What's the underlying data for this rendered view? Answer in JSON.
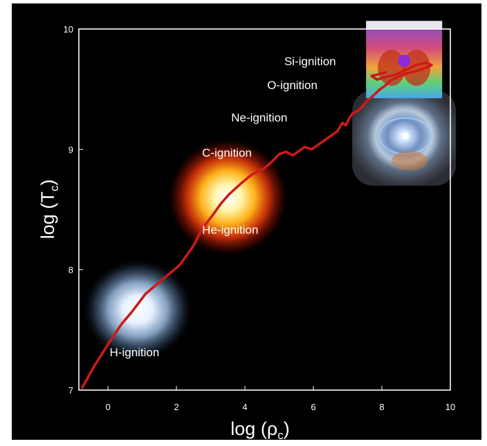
{
  "chart_data": {
    "type": "line",
    "xlabel": "log (ρ_c)",
    "ylabel": "log (T_c)",
    "xlabel_main": "log (ρ",
    "xlabel_sub": "c",
    "xlabel_close": ")",
    "ylabel_main": "log (T",
    "ylabel_sub": "c",
    "ylabel_close": ")",
    "xlim": [
      -0.85,
      10
    ],
    "ylim": [
      7,
      10
    ],
    "xticks": [
      0,
      2,
      4,
      6,
      8,
      10
    ],
    "yticks": [
      7,
      8,
      9,
      10
    ],
    "grid": false,
    "background": "#000000",
    "line_color": "#cc1a1a",
    "track": {
      "x": [
        -0.75,
        -0.4,
        0,
        0.4,
        0.7,
        1.1,
        1.6,
        2.1,
        2.5,
        2.75,
        3.05,
        3.3,
        3.55,
        3.9,
        4.2,
        4.55,
        4.8,
        5.0,
        5.2,
        5.4,
        5.55,
        5.75,
        5.95,
        6.15,
        6.35,
        6.55,
        6.7,
        6.85,
        6.95,
        7.05,
        7.15,
        7.3,
        7.45,
        7.55,
        7.65,
        7.8,
        7.95,
        8.1,
        8.25,
        8.45,
        8.7,
        9.0,
        9.3,
        9.45,
        9.3,
        9.0,
        8.7,
        8.4,
        8.1,
        7.85,
        7.7,
        7.85,
        8.1
      ],
      "y": [
        7.02,
        7.2,
        7.38,
        7.55,
        7.65,
        7.8,
        7.92,
        8.04,
        8.2,
        8.34,
        8.45,
        8.55,
        8.63,
        8.72,
        8.79,
        8.84,
        8.9,
        8.96,
        8.98,
        8.95,
        8.98,
        9.02,
        9.0,
        9.04,
        9.08,
        9.12,
        9.15,
        9.22,
        9.2,
        9.26,
        9.3,
        9.32,
        9.36,
        9.4,
        9.42,
        9.46,
        9.5,
        9.53,
        9.57,
        9.6,
        9.63,
        9.65,
        9.68,
        9.7,
        9.72,
        9.7,
        9.66,
        9.62,
        9.6,
        9.58,
        9.61,
        9.62,
        9.64
      ]
    },
    "annotations": [
      {
        "text": "H-ignition",
        "x": 0.05,
        "y": 7.28
      },
      {
        "text": "He-ignition",
        "x": 2.75,
        "y": 8.3
      },
      {
        "text": "C-ignition",
        "x": 2.75,
        "y": 8.94
      },
      {
        "text": "Ne-ignition",
        "x": 3.6,
        "y": 9.23
      },
      {
        "text": "O-ignition",
        "x": 4.65,
        "y": 9.5
      },
      {
        "text": "Si-ignition",
        "x": 5.15,
        "y": 9.7
      }
    ],
    "glows": [
      {
        "kind": "cool",
        "x": 0.95,
        "y": 7.68
      },
      {
        "kind": "hot",
        "x": 3.5,
        "y": 8.6
      }
    ],
    "insets": [
      {
        "kind": "nebula",
        "x": 8.65,
        "y": 9.1
      },
      {
        "kind": "simulation",
        "x": 8.65,
        "y": 9.7
      }
    ]
  }
}
